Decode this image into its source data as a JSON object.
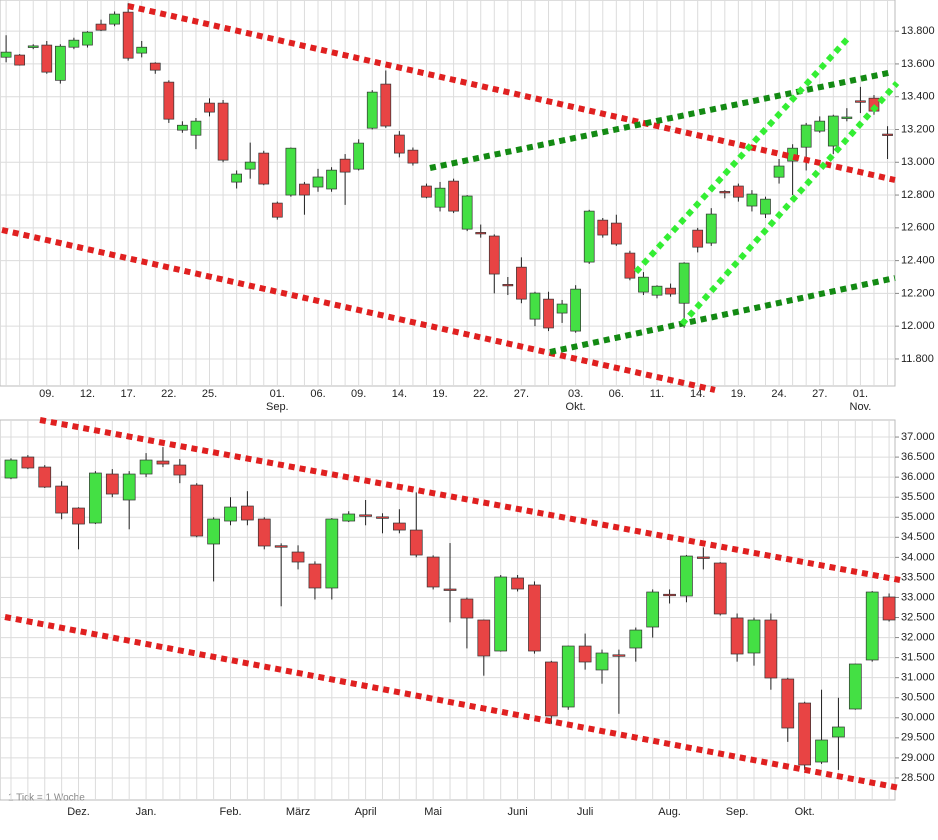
{
  "chart_data": [
    {
      "type": "candlestick",
      "up_color": "#44e044",
      "down_color": "#e84444",
      "categories": [
        null,
        null,
        null,
        "09.",
        null,
        null,
        "12.",
        null,
        null,
        "17.",
        null,
        null,
        "22.",
        null,
        null,
        "25.",
        null,
        null,
        null,
        null,
        "01.",
        null,
        null,
        "06.",
        null,
        null,
        "09.",
        null,
        null,
        "14.",
        null,
        null,
        "19.",
        null,
        null,
        "22.",
        null,
        null,
        "27.",
        null,
        null,
        null,
        "03.",
        null,
        null,
        "06.",
        null,
        null,
        "11.",
        null,
        null,
        "14.",
        null,
        null,
        "19.",
        null,
        null,
        "24.",
        null,
        null,
        "27.",
        null,
        null,
        "01.",
        null,
        null
      ],
      "months": [
        null,
        null,
        null,
        null,
        null,
        null,
        null,
        null,
        null,
        null,
        null,
        null,
        null,
        null,
        null,
        null,
        null,
        null,
        null,
        null,
        "Sep.",
        null,
        null,
        null,
        null,
        null,
        null,
        null,
        null,
        null,
        null,
        null,
        null,
        null,
        null,
        null,
        null,
        null,
        null,
        null,
        null,
        null,
        "Okt.",
        null,
        null,
        null,
        null,
        null,
        null,
        null,
        null,
        null,
        null,
        null,
        null,
        null,
        null,
        null,
        null,
        null,
        null,
        null,
        null,
        "Nov.",
        null,
        null
      ],
      "open": [
        13641,
        13654,
        13700,
        13715,
        13500,
        13702,
        13715,
        13843,
        13843,
        13916,
        13666,
        13605,
        13489,
        13196,
        13165,
        13361,
        13361,
        12879,
        12958,
        13056,
        12751,
        12800,
        12867,
        12849,
        12837,
        13019,
        12958,
        13208,
        13477,
        13166,
        13074,
        12855,
        12726,
        12885,
        12592,
        12572,
        12550,
        12255,
        12360,
        12043,
        12165,
        12080,
        11970,
        12391,
        12647,
        12629,
        12446,
        12208,
        12189,
        12232,
        12140,
        12586,
        12507,
        12822,
        12855,
        12733,
        12684,
        12909,
        13007,
        13092,
        13190,
        13099,
        13270,
        13375,
        13391,
        13172
      ],
      "high": [
        13775,
        13660,
        13720,
        13740,
        13720,
        13760,
        13800,
        13870,
        13920,
        13970,
        13740,
        13610,
        13500,
        13250,
        13270,
        13390,
        13380,
        12950,
        13120,
        13070,
        12760,
        13090,
        12880,
        12960,
        12970,
        13050,
        13140,
        13440,
        13560,
        13190,
        13090,
        12870,
        12880,
        12900,
        12800,
        12620,
        12560,
        12300,
        12420,
        12210,
        12210,
        12160,
        12250,
        12710,
        12660,
        12680,
        12460,
        12330,
        12250,
        12260,
        12390,
        12600,
        12720,
        12830,
        12870,
        12830,
        12790,
        13020,
        13110,
        13240,
        13280,
        13290,
        13330,
        13460,
        13410,
        13220
      ],
      "low": [
        13610,
        13590,
        13690,
        13540,
        13480,
        13690,
        13700,
        13800,
        13830,
        13620,
        13640,
        13540,
        13240,
        13180,
        13080,
        13280,
        13000,
        12840,
        12900,
        12860,
        12650,
        12790,
        12680,
        12820,
        12820,
        12740,
        12950,
        13200,
        13210,
        13030,
        12980,
        12780,
        12700,
        12690,
        12580,
        12540,
        12200,
        12190,
        12140,
        12000,
        11970,
        12020,
        11960,
        12380,
        12540,
        12490,
        12280,
        12190,
        12170,
        12180,
        11990,
        12450,
        12490,
        12780,
        12760,
        12700,
        12660,
        12870,
        12800,
        12950,
        13180,
        13050,
        13250,
        13300,
        13290,
        13020
      ],
      "close": [
        13672,
        13593,
        13710,
        13550,
        13708,
        13745,
        13794,
        13806,
        13904,
        13635,
        13702,
        13562,
        13263,
        13226,
        13251,
        13306,
        13013,
        12928,
        13001,
        12867,
        12665,
        13086,
        12800,
        12910,
        12952,
        12940,
        13117,
        13428,
        13221,
        13056,
        12995,
        12787,
        12842,
        12702,
        12794,
        12565,
        12318,
        12250,
        12165,
        12202,
        11989,
        12135,
        12226,
        12702,
        12556,
        12501,
        12293,
        12299,
        12244,
        12196,
        12385,
        12482,
        12684,
        12815,
        12787,
        12806,
        12775,
        12977,
        13086,
        13227,
        13251,
        13282,
        13276,
        13370,
        13312,
        13166
      ],
      "ylim": [
        11635,
        13990
      ],
      "yticks": [
        {
          "value": 11800,
          "label": "11.800"
        },
        {
          "value": 12000,
          "label": "12.000"
        },
        {
          "value": 12200,
          "label": "12.200"
        },
        {
          "value": 12400,
          "label": "12.400"
        },
        {
          "value": 12600,
          "label": "12.600"
        },
        {
          "value": 12800,
          "label": "12.800"
        },
        {
          "value": 13000,
          "label": "13.000"
        },
        {
          "value": 13200,
          "label": "13.200"
        },
        {
          "value": 13400,
          "label": "13.400"
        },
        {
          "value": 13600,
          "label": "13.600"
        },
        {
          "value": 13800,
          "label": "13.800"
        }
      ],
      "grid": true
    },
    {
      "type": "candlestick",
      "up_color": "#44e044",
      "down_color": "#e84444",
      "categories": [
        null,
        null,
        null,
        null,
        "Dez.",
        null,
        null,
        null,
        "Jan.",
        null,
        null,
        null,
        null,
        "Feb.",
        null,
        null,
        null,
        "März",
        null,
        null,
        null,
        "April",
        null,
        null,
        null,
        "Mai",
        null,
        null,
        null,
        null,
        "Juni",
        null,
        null,
        null,
        "Juli",
        null,
        null,
        null,
        null,
        "Aug.",
        null,
        null,
        null,
        "Sep.",
        null,
        null,
        null,
        "Okt.",
        null,
        null,
        null,
        null,
        null
      ],
      "open": [
        35978,
        36502,
        36252,
        35778,
        35230,
        34856,
        36078,
        35430,
        36078,
        36402,
        36302,
        35803,
        34333,
        34906,
        35280,
        34956,
        34290,
        34133,
        33834,
        33236,
        34906,
        35060,
        35010,
        34856,
        34681,
        34008,
        33211,
        32962,
        32438,
        31665,
        33485,
        33311,
        31391,
        30269,
        31789,
        31192,
        31570,
        31740,
        32263,
        33080,
        33036,
        34010,
        33859,
        32488,
        31615,
        32438,
        30967,
        30368,
        28897,
        29521,
        30219,
        31441,
        33012
      ],
      "high": [
        36470,
        36550,
        36300,
        35900,
        35250,
        36150,
        36200,
        36150,
        36600,
        36750,
        36450,
        35850,
        35000,
        35500,
        35650,
        35000,
        34350,
        34300,
        33900,
        34980,
        35150,
        35430,
        35100,
        35200,
        35620,
        34050,
        34357,
        33000,
        32450,
        33560,
        33560,
        33400,
        31420,
        31800,
        32100,
        31700,
        31700,
        32250,
        33200,
        33200,
        34060,
        34250,
        33880,
        32600,
        32500,
        32600,
        31000,
        30400,
        30700,
        30500,
        31350,
        33160,
        33100
      ],
      "low": [
        35950,
        36200,
        35730,
        34950,
        34200,
        34830,
        35500,
        34700,
        36000,
        36250,
        35850,
        34500,
        33400,
        34800,
        34800,
        34200,
        32780,
        33700,
        32950,
        32950,
        34880,
        34800,
        34600,
        34600,
        34000,
        33200,
        32380,
        31730,
        31050,
        31650,
        33150,
        31600,
        29850,
        30200,
        31200,
        30850,
        30100,
        31400,
        32000,
        32850,
        32880,
        33700,
        32550,
        31400,
        31300,
        30700,
        29400,
        28700,
        28850,
        28700,
        30200,
        31400,
        32400
      ],
      "close": [
        36427,
        36228,
        35753,
        35105,
        34831,
        36103,
        35579,
        36078,
        36427,
        36327,
        36053,
        34532,
        34956,
        35255,
        34931,
        34283,
        34270,
        33884,
        33236,
        34956,
        35081,
        35040,
        34990,
        34681,
        34058,
        33261,
        33190,
        32488,
        31540,
        33510,
        33211,
        31665,
        30045,
        31789,
        31391,
        31615,
        31550,
        32188,
        33136,
        33050,
        34033,
        33990,
        32588,
        31590,
        32438,
        30992,
        29745,
        28823,
        29446,
        29770,
        31341,
        33136,
        32438
      ],
      "ylim": [
        27950,
        37425
      ],
      "yticks": [
        {
          "value": 28500,
          "label": "28.500"
        },
        {
          "value": 29000,
          "label": "29.000"
        },
        {
          "value": 29500,
          "label": "29.500"
        },
        {
          "value": 30000,
          "label": "30.000"
        },
        {
          "value": 30500,
          "label": "30.500"
        },
        {
          "value": 31000,
          "label": "31.000"
        },
        {
          "value": 31500,
          "label": "31.500"
        },
        {
          "value": 32000,
          "label": "32.000"
        },
        {
          "value": 32500,
          "label": "32.500"
        },
        {
          "value": 33000,
          "label": "33.000"
        },
        {
          "value": 33500,
          "label": "33.500"
        },
        {
          "value": 34000,
          "label": "34.000"
        },
        {
          "value": 34500,
          "label": "34.500"
        },
        {
          "value": 35000,
          "label": "35.000"
        },
        {
          "value": 35500,
          "label": "35.500"
        },
        {
          "value": 36000,
          "label": "36.000"
        },
        {
          "value": 36500,
          "label": "36.500"
        },
        {
          "value": 37000,
          "label": "37.000"
        }
      ],
      "grid": true,
      "note": "1 Tick = 1 Woche"
    }
  ]
}
